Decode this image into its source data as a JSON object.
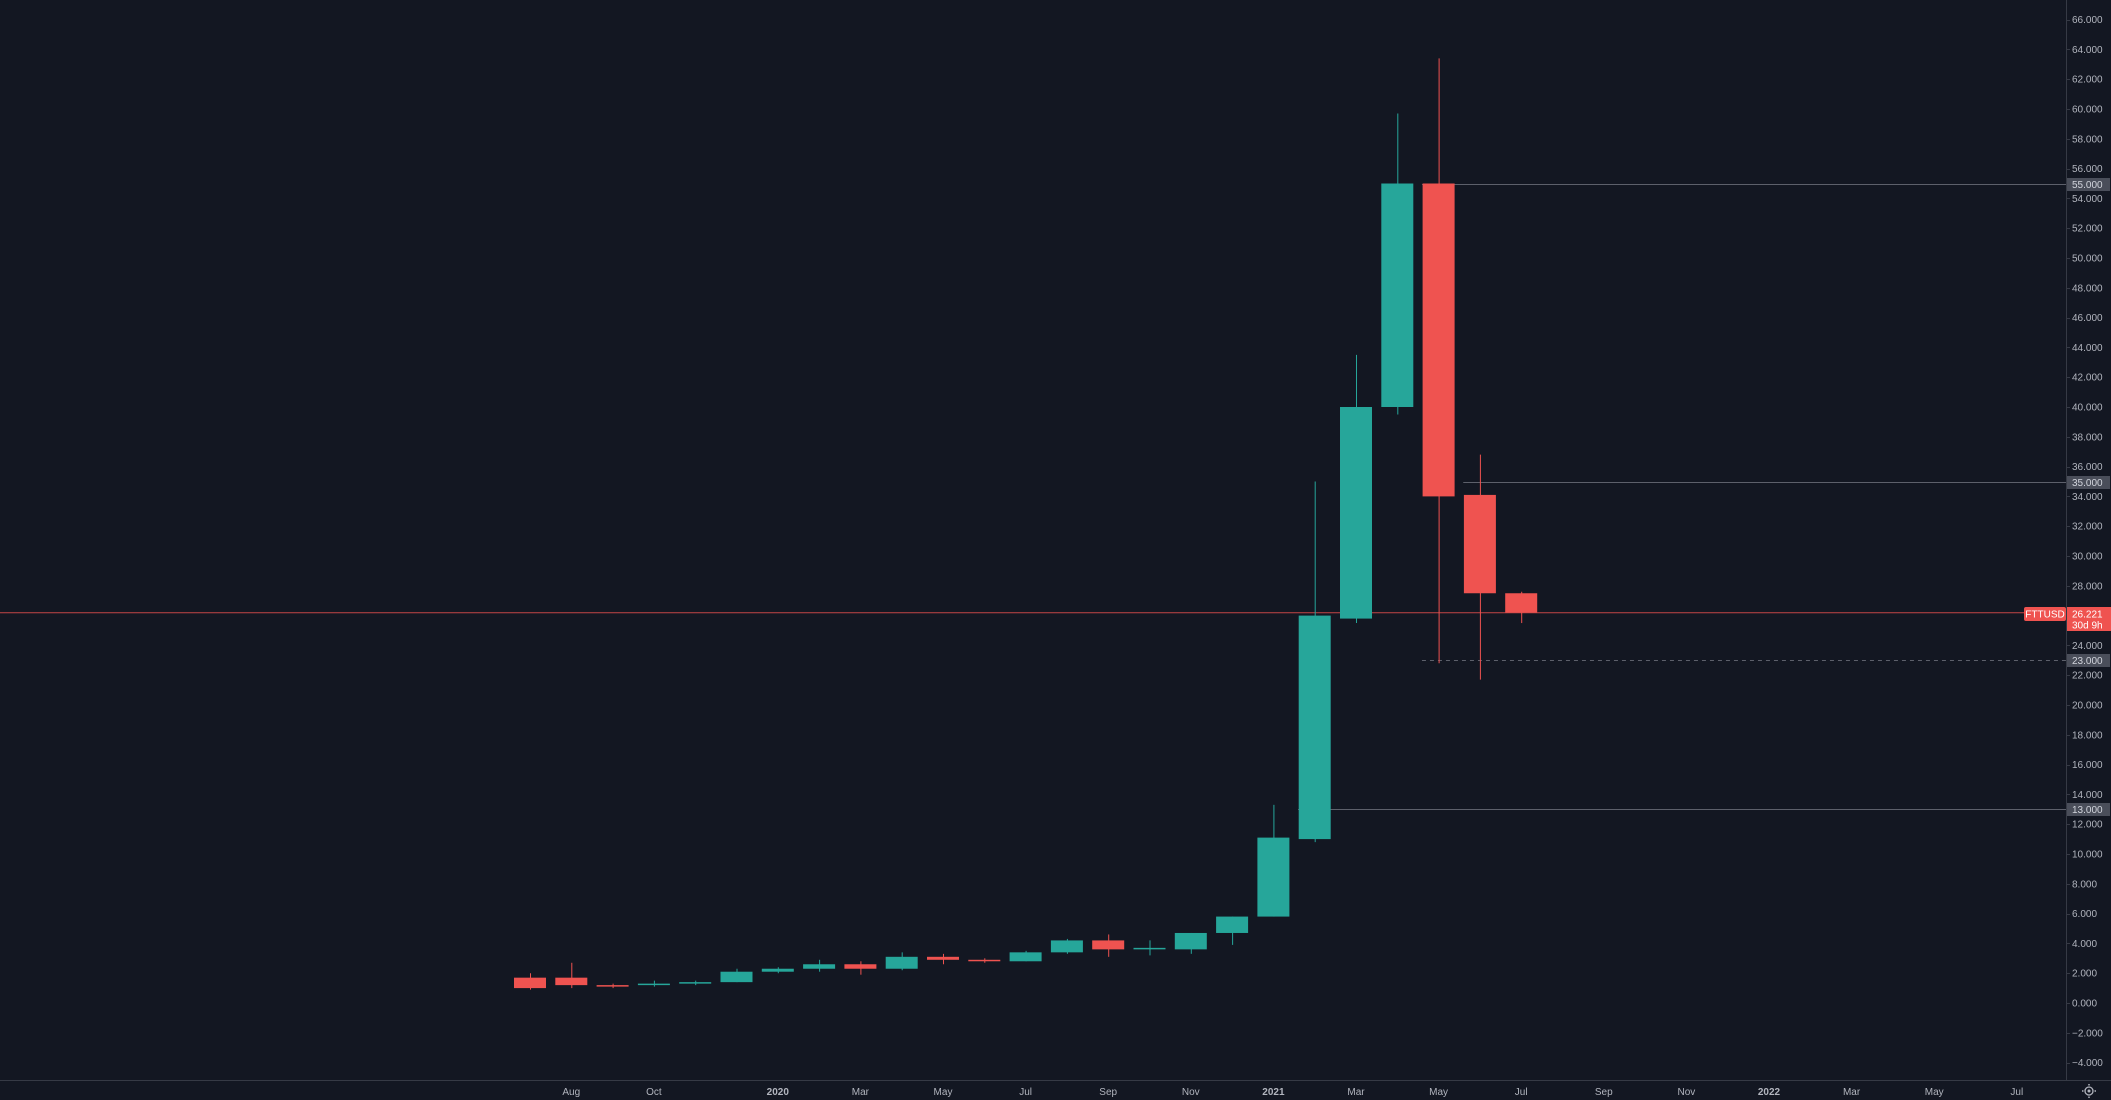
{
  "colors": {
    "background": "#131722",
    "up": "#26a69a",
    "down": "#ef5350",
    "level_line": "#5d606b",
    "axis_text": "#b2b5be"
  },
  "icons": {
    "settings": "gear-icon"
  },
  "chart_data": {
    "type": "candlestick",
    "symbol": "FTTUSD",
    "last_price": "26.221",
    "countdown": "30d 9h",
    "ylim": [
      -5,
      67
    ],
    "y_ticks": [
      "66.000",
      "64.000",
      "62.000",
      "60.000",
      "58.000",
      "56.000",
      "54.000",
      "52.000",
      "50.000",
      "48.000",
      "46.000",
      "44.000",
      "42.000",
      "40.000",
      "38.000",
      "36.000",
      "34.000",
      "32.000",
      "30.000",
      "28.000",
      "26.000",
      "24.000",
      "22.000",
      "20.000",
      "18.000",
      "16.000",
      "14.000",
      "12.000",
      "10.000",
      "8.000",
      "6.000",
      "4.000",
      "2.000",
      "0.000",
      "−2.000",
      "−4.000"
    ],
    "x_ticks": [
      {
        "label": "Aug",
        "date": "2019-08"
      },
      {
        "label": "Oct",
        "date": "2019-10"
      },
      {
        "label": "2020",
        "date": "2020-01",
        "major": true
      },
      {
        "label": "Mar",
        "date": "2020-03"
      },
      {
        "label": "May",
        "date": "2020-05"
      },
      {
        "label": "Jul",
        "date": "2020-07"
      },
      {
        "label": "Sep",
        "date": "2020-09"
      },
      {
        "label": "Nov",
        "date": "2020-11"
      },
      {
        "label": "2021",
        "date": "2021-01",
        "major": true
      },
      {
        "label": "Mar",
        "date": "2021-03"
      },
      {
        "label": "May",
        "date": "2021-05"
      },
      {
        "label": "Jul",
        "date": "2021-07"
      },
      {
        "label": "Sep",
        "date": "2021-09"
      },
      {
        "label": "Nov",
        "date": "2021-11"
      },
      {
        "label": "2022",
        "date": "2022-01",
        "major": true
      },
      {
        "label": "Mar",
        "date": "2022-03"
      },
      {
        "label": "May",
        "date": "2022-05"
      },
      {
        "label": "Jul",
        "date": "2022-07"
      }
    ],
    "candles": [
      {
        "date": "2019-07",
        "open": 1.7,
        "high": 2.0,
        "low": 0.9,
        "close": 1.0
      },
      {
        "date": "2019-08",
        "open": 1.7,
        "high": 2.7,
        "low": 1.0,
        "close": 1.2
      },
      {
        "date": "2019-09",
        "open": 1.2,
        "high": 1.3,
        "low": 1.0,
        "close": 1.1
      },
      {
        "date": "2019-10",
        "open": 1.2,
        "high": 1.5,
        "low": 1.1,
        "close": 1.3
      },
      {
        "date": "2019-11",
        "open": 1.3,
        "high": 1.5,
        "low": 1.2,
        "close": 1.4
      },
      {
        "date": "2019-12",
        "open": 1.4,
        "high": 2.3,
        "low": 1.4,
        "close": 2.1
      },
      {
        "date": "2020-01",
        "open": 2.1,
        "high": 2.4,
        "low": 2.0,
        "close": 2.3
      },
      {
        "date": "2020-02",
        "open": 2.3,
        "high": 2.9,
        "low": 2.1,
        "close": 2.6
      },
      {
        "date": "2020-03",
        "open": 2.6,
        "high": 2.8,
        "low": 1.9,
        "close": 2.3
      },
      {
        "date": "2020-04",
        "open": 2.3,
        "high": 3.4,
        "low": 2.2,
        "close": 3.1
      },
      {
        "date": "2020-05",
        "open": 3.1,
        "high": 3.3,
        "low": 2.6,
        "close": 2.9
      },
      {
        "date": "2020-06",
        "open": 2.9,
        "high": 3.0,
        "low": 2.7,
        "close": 2.8
      },
      {
        "date": "2020-07",
        "open": 2.8,
        "high": 3.5,
        "low": 2.8,
        "close": 3.4
      },
      {
        "date": "2020-08",
        "open": 3.4,
        "high": 4.3,
        "low": 3.3,
        "close": 4.2
      },
      {
        "date": "2020-09",
        "open": 4.2,
        "high": 4.6,
        "low": 3.1,
        "close": 3.6
      },
      {
        "date": "2020-10",
        "open": 3.6,
        "high": 4.2,
        "low": 3.2,
        "close": 3.7
      },
      {
        "date": "2020-11",
        "open": 3.6,
        "high": 4.7,
        "low": 3.3,
        "close": 4.7
      },
      {
        "date": "2020-12",
        "open": 4.7,
        "high": 5.8,
        "low": 3.9,
        "close": 5.8
      },
      {
        "date": "2021-01",
        "open": 5.8,
        "high": 13.3,
        "low": 5.8,
        "close": 11.1
      },
      {
        "date": "2021-02",
        "open": 11.0,
        "high": 35.0,
        "low": 10.8,
        "close": 26.0
      },
      {
        "date": "2021-03",
        "open": 25.8,
        "high": 43.5,
        "low": 25.5,
        "close": 40.0
      },
      {
        "date": "2021-04",
        "open": 40.0,
        "high": 59.7,
        "low": 39.5,
        "close": 55.0
      },
      {
        "date": "2021-05",
        "open": 55.0,
        "high": 63.4,
        "low": 22.8,
        "close": 34.0
      },
      {
        "date": "2021-06",
        "open": 34.1,
        "high": 36.8,
        "low": 21.7,
        "close": 27.5
      },
      {
        "date": "2021-07",
        "open": 27.5,
        "high": 27.6,
        "low": 25.5,
        "close": 26.2
      }
    ],
    "levels": [
      {
        "value": 55.0,
        "label": "55.000",
        "from": "2021-05",
        "style": "solid"
      },
      {
        "value": 35.0,
        "label": "35.000",
        "from": "2021-06",
        "style": "solid"
      },
      {
        "value": 23.0,
        "label": "23.000",
        "from": "2021-05",
        "style": "dashed"
      },
      {
        "value": 13.0,
        "label": "13.000",
        "from": "2021-02",
        "style": "solid"
      }
    ]
  }
}
